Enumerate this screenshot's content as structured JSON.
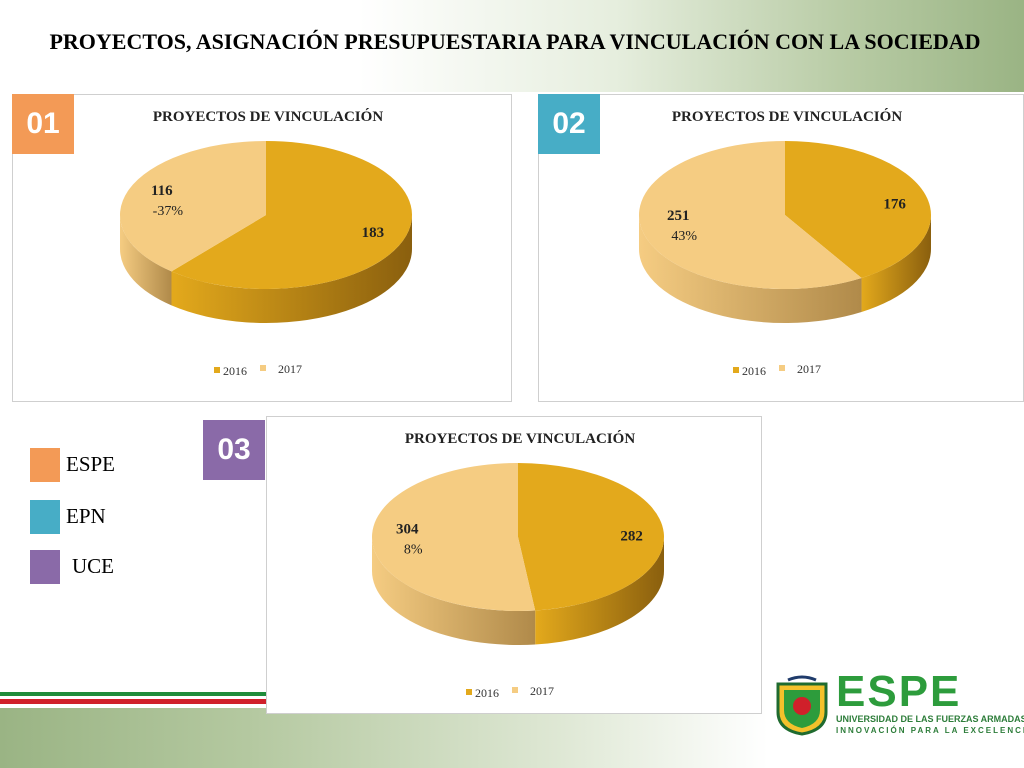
{
  "slide": {
    "title": "PROYECTOS, ASIGNACIÓN PRESUPUESTARIA PARA VINCULACIÓN CON LA SOCIEDAD"
  },
  "colors": {
    "espe": "#f39a56",
    "epn": "#47adc6",
    "uce": "#8a6aa8",
    "series_2016": "#e3a91c",
    "series_2017": "#f5cc82"
  },
  "badges": [
    "01",
    "02",
    "03"
  ],
  "legend": [
    {
      "label": "ESPE",
      "color": "#f39a56"
    },
    {
      "label": "EPN",
      "color": "#47adc6"
    },
    {
      "label": "UCE",
      "color": "#8a6aa8"
    }
  ],
  "chart_data": [
    {
      "type": "pie",
      "title": "PROYECTOS DE VINCULACIÓN",
      "categories": [
        "2016",
        "2017"
      ],
      "values": [
        183,
        116
      ],
      "annotation": "-37%",
      "legend_position": "bottom"
    },
    {
      "type": "pie",
      "title": "PROYECTOS DE VINCULACIÓN",
      "categories": [
        "2016",
        "2017"
      ],
      "values": [
        176,
        251
      ],
      "annotation": "43%",
      "legend_position": "bottom"
    },
    {
      "type": "pie",
      "title": "PROYECTOS DE VINCULACIÓN",
      "categories": [
        "2016",
        "2017"
      ],
      "values": [
        282,
        304
      ],
      "annotation": "8%",
      "legend_position": "bottom"
    }
  ],
  "logo": {
    "name": "ESPE",
    "line1": "UNIVERSIDAD DE LAS FUERZAS ARMADAS",
    "line2": "INNOVACIÓN PARA LA EXCELENCIA"
  }
}
